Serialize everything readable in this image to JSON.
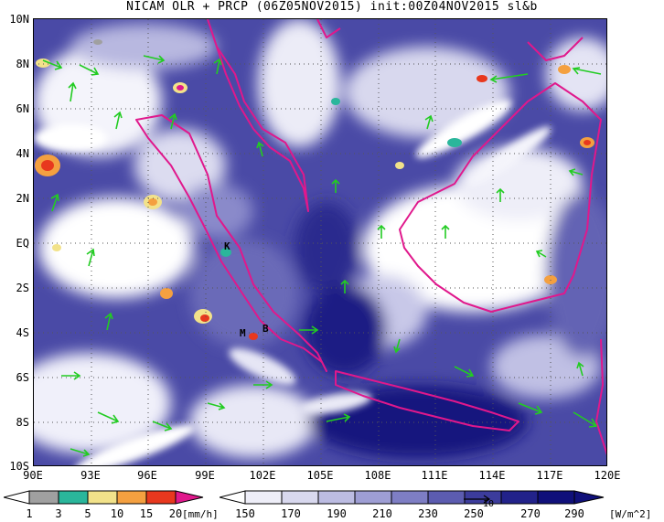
{
  "title": "NICAM OLR + PRCP (06Z05NOV2015) init:00Z04NOV2015 sl&b",
  "axes": {
    "lat_labels": [
      "10N",
      "8N",
      "6N",
      "4N",
      "2N",
      "EQ",
      "2S",
      "4S",
      "6S",
      "8S",
      "10S"
    ],
    "lon_labels": [
      "90E",
      "93E",
      "96E",
      "99E",
      "102E",
      "105E",
      "108E",
      "111E",
      "114E",
      "117E",
      "120E"
    ]
  },
  "places": [
    {
      "name": "K",
      "lon": 100.3,
      "lat": -0.2
    },
    {
      "name": "M",
      "lon": 100.5,
      "lat": -4.0
    },
    {
      "name": "B",
      "lon": 101.3,
      "lat": -3.8
    }
  ],
  "precip_legend": {
    "ticks": [
      "1",
      "3",
      "5",
      "10",
      "15",
      "20"
    ],
    "unit": "[mm/h]",
    "colors": [
      "#a0a0a0",
      "#2ab69b",
      "#f2e28a",
      "#f4a040",
      "#e8381e",
      "#e0188c"
    ]
  },
  "olr_legend": {
    "ticks": [
      "150",
      "170",
      "190",
      "210",
      "230",
      "250",
      "270",
      "290"
    ],
    "unit": "[W/m^2]",
    "colors": [
      "#ffffff",
      "#eeeef8",
      "#d8d8ee",
      "#bcbce2",
      "#9e9ed4",
      "#7e7ec4",
      "#5c5cb0",
      "#3c3c9c",
      "#22228a",
      "#10107a"
    ]
  },
  "wind_reference": "10"
}
